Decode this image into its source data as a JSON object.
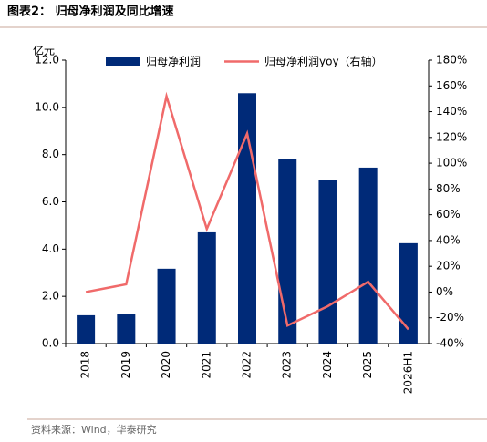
{
  "title": "图表2：  归母净利润及同比增速",
  "source": "资料来源：Wind，华泰研究",
  "chart_data": {
    "type": "bar-line",
    "y_label": "亿元",
    "categories": [
      "2018",
      "2019",
      "2020",
      "2021",
      "2022",
      "2023",
      "2024",
      "2025",
      "2026H1"
    ],
    "series": [
      {
        "name": "归母净利润",
        "type": "bar",
        "color": "#002a78",
        "values": [
          1.2,
          1.27,
          3.17,
          4.71,
          10.6,
          7.8,
          6.91,
          7.45,
          4.25
        ]
      },
      {
        "name": "归母净利润yoy（右轴）",
        "type": "line",
        "axis": "y2",
        "color": "#f06a6a",
        "values": [
          0,
          6,
          152,
          49,
          123,
          -26,
          -11,
          8,
          -29
        ]
      }
    ],
    "ylim": [
      0,
      12
    ],
    "yticks": [
      {
        "value": 0,
        "label": "0.0"
      },
      {
        "value": 2,
        "label": "2.0"
      },
      {
        "value": 4,
        "label": "4.0"
      },
      {
        "value": 6,
        "label": "6.0"
      },
      {
        "value": 8,
        "label": "8.0"
      },
      {
        "value": 10,
        "label": "10.0"
      },
      {
        "value": 12,
        "label": "12.0"
      }
    ],
    "y2lim": [
      -40,
      180
    ],
    "y2ticks": [
      {
        "value": -40,
        "label": "-40%"
      },
      {
        "value": -20,
        "label": "-20%"
      },
      {
        "value": 0,
        "label": "0%"
      },
      {
        "value": 20,
        "label": "20%"
      },
      {
        "value": 40,
        "label": "40%"
      },
      {
        "value": 60,
        "label": "60%"
      },
      {
        "value": 80,
        "label": "80%"
      },
      {
        "value": 100,
        "label": "100%"
      },
      {
        "value": 120,
        "label": "120%"
      },
      {
        "value": 140,
        "label": "140%"
      },
      {
        "value": 160,
        "label": "160%"
      },
      {
        "value": 180,
        "label": "180%"
      }
    ],
    "legend": "top"
  }
}
